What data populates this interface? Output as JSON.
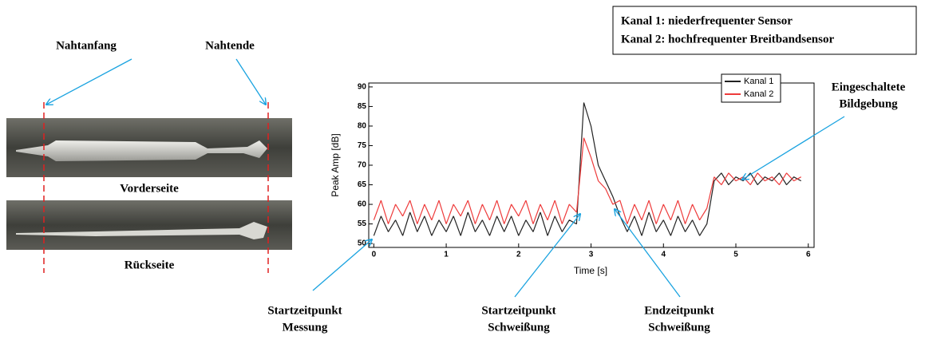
{
  "chart_data": {
    "type": "line",
    "xlabel": "Time [s]",
    "ylabel": "Peak Amp [dB]",
    "x": [
      0,
      0.1,
      0.2,
      0.3,
      0.4,
      0.5,
      0.6,
      0.7,
      0.8,
      0.9,
      1,
      1.1,
      1.2,
      1.3,
      1.4,
      1.5,
      1.6,
      1.7,
      1.8,
      1.9,
      2,
      2.1,
      2.2,
      2.3,
      2.4,
      2.5,
      2.6,
      2.7,
      2.8,
      2.9,
      3,
      3.1,
      3.2,
      3.3,
      3.4,
      3.5,
      3.6,
      3.7,
      3.8,
      3.9,
      4,
      4.1,
      4.2,
      4.3,
      4.4,
      4.5,
      4.6,
      4.7,
      4.8,
      4.9,
      5,
      5.1,
      5.2,
      5.3,
      5.4,
      5.5,
      5.6,
      5.7,
      5.8,
      5.9
    ],
    "series": [
      {
        "name": "Kanal 1",
        "color": "#222222",
        "values": [
          52,
          57,
          53,
          56,
          52,
          58,
          53,
          57,
          52,
          56,
          53,
          57,
          52,
          58,
          53,
          56,
          52,
          57,
          53,
          57,
          52,
          56,
          53,
          58,
          52,
          57,
          53,
          56,
          55,
          86,
          80,
          70,
          66,
          62,
          57,
          53,
          57,
          52,
          58,
          53,
          56,
          52,
          57,
          53,
          56,
          52,
          55,
          66,
          68,
          65,
          67,
          66,
          68,
          65,
          67,
          66,
          68,
          65,
          67,
          66
        ]
      },
      {
        "name": "Kanal 2",
        "color": "#ee3b3b",
        "values": [
          56,
          61,
          55,
          60,
          57,
          61,
          55,
          60,
          56,
          61,
          55,
          60,
          57,
          61,
          55,
          60,
          56,
          61,
          55,
          60,
          57,
          61,
          55,
          60,
          56,
          61,
          55,
          60,
          58,
          77,
          72,
          66,
          64,
          60,
          61,
          55,
          60,
          56,
          61,
          55,
          60,
          56,
          61,
          55,
          60,
          56,
          59,
          67,
          65,
          68,
          66,
          67,
          65,
          68,
          66,
          67,
          65,
          68,
          66,
          67
        ]
      }
    ],
    "xlim": [
      -0.07,
      6.08
    ],
    "ylim": [
      49,
      91
    ],
    "xticks": [
      0,
      1,
      2,
      3,
      4,
      5,
      6
    ],
    "yticks": [
      50,
      55,
      60,
      65,
      70,
      75,
      80,
      85,
      90
    ],
    "legend": "upper right"
  },
  "info_box": [
    "Kanal 1: niederfrequenter Sensor",
    "Kanal 2: hochfrequenter Breitbandsensor"
  ],
  "photo": {
    "seam_start": "Nahtanfang",
    "seam_end": "Nahtende",
    "front": "Vorderseite",
    "back": "Rückseite"
  },
  "annotations": [
    {
      "lines": [
        "Startzeitpunkt",
        "Messung"
      ]
    },
    {
      "lines": [
        "Startzeitpunkt",
        "Schweißung"
      ]
    },
    {
      "lines": [
        "Endzeitpunkt",
        "Schweißung"
      ]
    },
    {
      "lines": [
        "Eingeschaltete",
        "Bildgebung"
      ]
    }
  ]
}
